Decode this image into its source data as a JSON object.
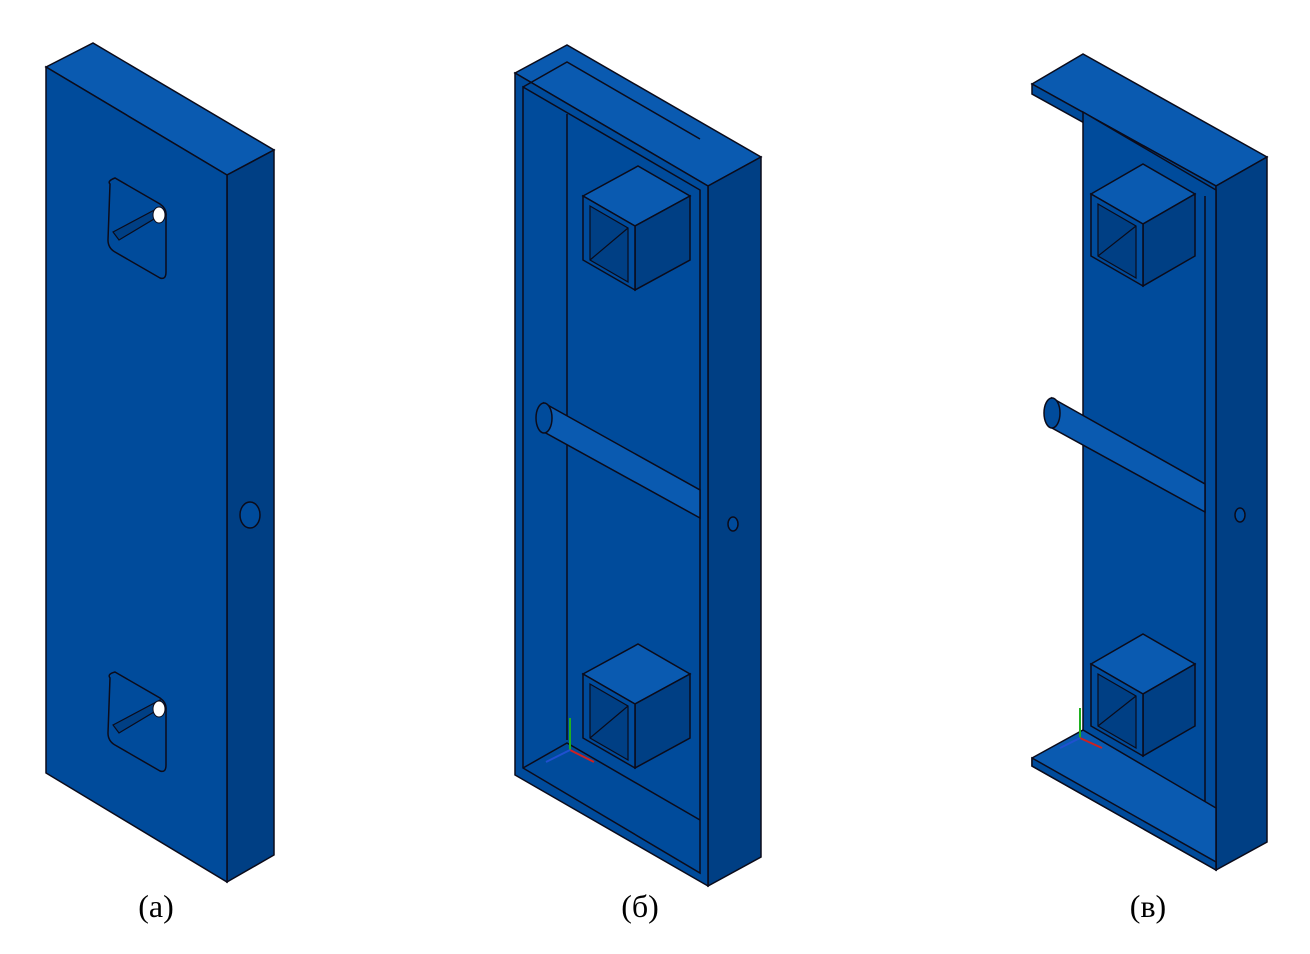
{
  "colors": {
    "part_face": "#004b9b",
    "part_face_dark": "#003f84",
    "part_face_light": "#0a5ab0",
    "edge": "#0b0b1a",
    "hole": "#ffffff",
    "background": "#ffffff",
    "axis_x": "#d02020",
    "axis_y": "#20b020",
    "axis_z": "#2050d0"
  },
  "figures": [
    {
      "caption": "(а)",
      "icon": "solid-plate-with-square-windows"
    },
    {
      "caption": "(б)",
      "icon": "open-box-with-square-tubes-and-rod"
    },
    {
      "caption": "(в)",
      "icon": "channel-with-square-tubes-and-rod"
    }
  ]
}
